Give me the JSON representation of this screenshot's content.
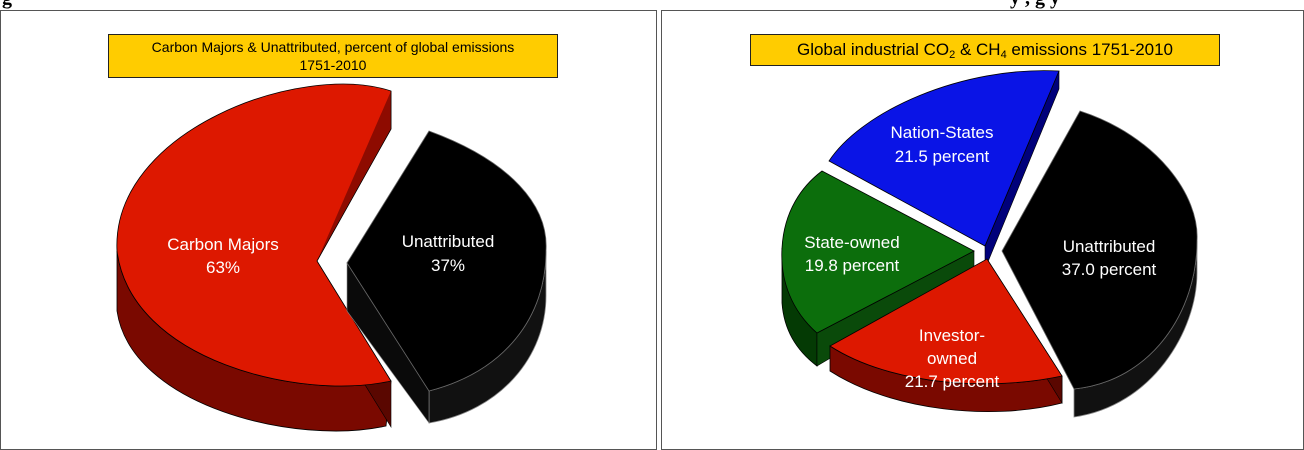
{
  "header_partial": {
    "left": "g",
    "right": "y                       ,           g   y"
  },
  "chart_data": [
    {
      "type": "pie",
      "title_line1": "Carbon Majors & Unattributed, percent of global emissions",
      "title_line2": "1751-2010",
      "slices": [
        {
          "label": "Carbon Majors",
          "value_text": "63%",
          "value": 63,
          "color": "#dd1800"
        },
        {
          "label": "Unattributed",
          "value_text": "37%",
          "value": 37,
          "color": "#000000"
        }
      ]
    },
    {
      "type": "pie",
      "title_pre": "Global industrial CO",
      "title_sub1": "2",
      "title_mid": " & CH",
      "title_sub2": "4",
      "title_post": " emissions 1751-2010",
      "slices": [
        {
          "label": "Nation-States",
          "value_text": "21.5 percent",
          "value": 21.5,
          "color": "#0a14e6"
        },
        {
          "label": "Unattributed",
          "value_text": "37.0 percent",
          "value": 37.0,
          "color": "#000000"
        },
        {
          "label_line1": "Investor-",
          "label_line2": "owned",
          "value_text": "21.7 percent",
          "value": 21.7,
          "color": "#dd1800"
        },
        {
          "label": "State-owned",
          "value_text": "19.8 percent",
          "value": 19.8,
          "color": "#0c6e0c"
        }
      ]
    }
  ]
}
